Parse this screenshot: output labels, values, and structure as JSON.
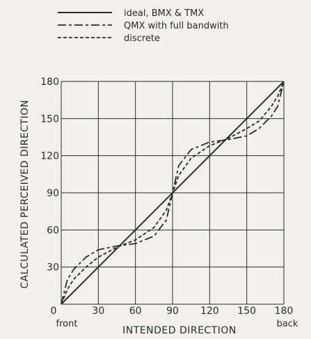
{
  "chart_data": {
    "type": "line",
    "title": "",
    "xlabel": "INTENDED DIRECTION",
    "ylabel": "CALCULATED PERCEIVED DIRECTION",
    "xlim": [
      0,
      180
    ],
    "ylim": [
      0,
      180
    ],
    "xticks": [
      0,
      30,
      60,
      90,
      120,
      150,
      180
    ],
    "yticks": [
      0,
      30,
      60,
      90,
      120,
      150,
      180
    ],
    "x_end_labels": {
      "left": "front",
      "right": "back"
    },
    "grid": true,
    "legend_position": "top",
    "series": [
      {
        "name": "ideal, BMX & TMX",
        "style": "solid",
        "x": [
          0,
          180
        ],
        "y": [
          0,
          180
        ]
      },
      {
        "name": "QMX with full bandwith",
        "style": "dashdot",
        "x": [
          0,
          5,
          10,
          20,
          30,
          45,
          60,
          75,
          85,
          90,
          95,
          105,
          120,
          135,
          150,
          160,
          170,
          175,
          180
        ],
        "y": [
          0,
          20,
          28,
          38,
          44,
          47,
          49,
          55,
          68,
          90,
          112,
          125,
          131,
          133,
          136,
          142,
          152,
          160,
          180
        ]
      },
      {
        "name": "discrete",
        "style": "dashed",
        "x": [
          0,
          5,
          10,
          20,
          30,
          45,
          60,
          75,
          85,
          90,
          95,
          105,
          120,
          135,
          150,
          160,
          170,
          175,
          180
        ],
        "y": [
          0,
          12,
          20,
          30,
          38,
          46,
          52,
          62,
          76,
          90,
          104,
          118,
          128,
          134,
          142,
          148,
          160,
          168,
          180
        ]
      }
    ]
  }
}
